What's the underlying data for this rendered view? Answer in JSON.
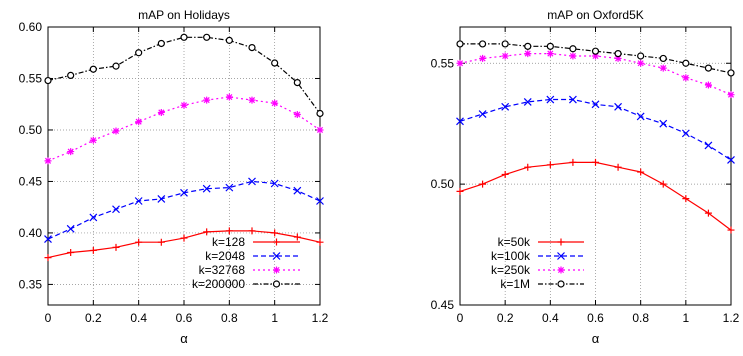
{
  "chart_data": [
    {
      "type": "line",
      "title": "mAP on Holidays",
      "xlabel": "α",
      "ylabel": "",
      "xlim": [
        0,
        1.2
      ],
      "ylim": [
        0.33,
        0.6
      ],
      "x_ticks": [
        0,
        0.2,
        0.4,
        0.6,
        0.8,
        1,
        1.2
      ],
      "x_tick_labels": [
        "0",
        "0.2",
        "0.4",
        "0.6",
        "0.8",
        "1",
        "1.2"
      ],
      "y_ticks": [
        0.35,
        0.4,
        0.45,
        0.5,
        0.55,
        0.6
      ],
      "y_tick_labels": [
        "0.35",
        "0.40",
        "0.45",
        "0.50",
        "0.55",
        "0.60"
      ],
      "grid": true,
      "legend_position": "bottom-right",
      "x": [
        0,
        0.1,
        0.2,
        0.3,
        0.4,
        0.5,
        0.6,
        0.7,
        0.8,
        0.9,
        1.0,
        1.1,
        1.2
      ],
      "series": [
        {
          "name": "k=128",
          "color": "#ff0000",
          "marker": "plus",
          "dash": "solid",
          "values": [
            0.376,
            0.381,
            0.383,
            0.386,
            0.391,
            0.391,
            0.395,
            0.401,
            0.402,
            0.402,
            0.4,
            0.396,
            0.391
          ]
        },
        {
          "name": "k=2048",
          "color": "#0000ff",
          "marker": "x",
          "dash": "dashed",
          "values": [
            0.394,
            0.404,
            0.415,
            0.423,
            0.431,
            0.433,
            0.439,
            0.443,
            0.444,
            0.45,
            0.448,
            0.441,
            0.431
          ]
        },
        {
          "name": "k=32768",
          "color": "#ff00ff",
          "marker": "star",
          "dash": "dotted",
          "values": [
            0.47,
            0.479,
            0.49,
            0.499,
            0.508,
            0.517,
            0.524,
            0.529,
            0.532,
            0.529,
            0.526,
            0.515,
            0.5
          ]
        },
        {
          "name": "k=200000",
          "color": "#000000",
          "marker": "circle",
          "dash": "dashdot",
          "values": [
            0.548,
            0.553,
            0.559,
            0.562,
            0.575,
            0.584,
            0.59,
            0.59,
            0.587,
            0.58,
            0.565,
            0.546,
            0.516
          ]
        }
      ]
    },
    {
      "type": "line",
      "title": "mAP on Oxford5K",
      "xlabel": "α",
      "ylabel": "",
      "xlim": [
        0,
        1.2
      ],
      "ylim": [
        0.45,
        0.565
      ],
      "x_ticks": [
        0,
        0.2,
        0.4,
        0.6,
        0.8,
        1,
        1.2
      ],
      "x_tick_labels": [
        "0",
        "0.2",
        "0.4",
        "0.6",
        "0.8",
        "1",
        "1.2"
      ],
      "y_ticks": [
        0.45,
        0.5,
        0.55
      ],
      "y_tick_labels": [
        "0.45",
        "0.50",
        "0.55"
      ],
      "grid": true,
      "legend_position": "bottom-left",
      "x": [
        0,
        0.1,
        0.2,
        0.3,
        0.4,
        0.5,
        0.6,
        0.7,
        0.8,
        0.9,
        1.0,
        1.1,
        1.2
      ],
      "series": [
        {
          "name": "k=50k",
          "color": "#ff0000",
          "marker": "plus",
          "dash": "solid",
          "values": [
            0.497,
            0.5,
            0.504,
            0.507,
            0.508,
            0.509,
            0.509,
            0.507,
            0.505,
            0.5,
            0.494,
            0.488,
            0.481
          ]
        },
        {
          "name": "k=100k",
          "color": "#0000ff",
          "marker": "x",
          "dash": "dashed",
          "values": [
            0.526,
            0.529,
            0.532,
            0.534,
            0.535,
            0.535,
            0.533,
            0.532,
            0.528,
            0.525,
            0.521,
            0.516,
            0.51
          ]
        },
        {
          "name": "k=250k",
          "color": "#ff00ff",
          "marker": "star",
          "dash": "dotted",
          "values": [
            0.55,
            0.552,
            0.553,
            0.554,
            0.554,
            0.553,
            0.553,
            0.552,
            0.55,
            0.548,
            0.544,
            0.541,
            0.537
          ]
        },
        {
          "name": "k=1M",
          "color": "#000000",
          "marker": "circle",
          "dash": "dashdot",
          "values": [
            0.558,
            0.558,
            0.558,
            0.557,
            0.557,
            0.556,
            0.555,
            0.554,
            0.553,
            0.552,
            0.55,
            0.548,
            0.546
          ]
        }
      ]
    }
  ]
}
